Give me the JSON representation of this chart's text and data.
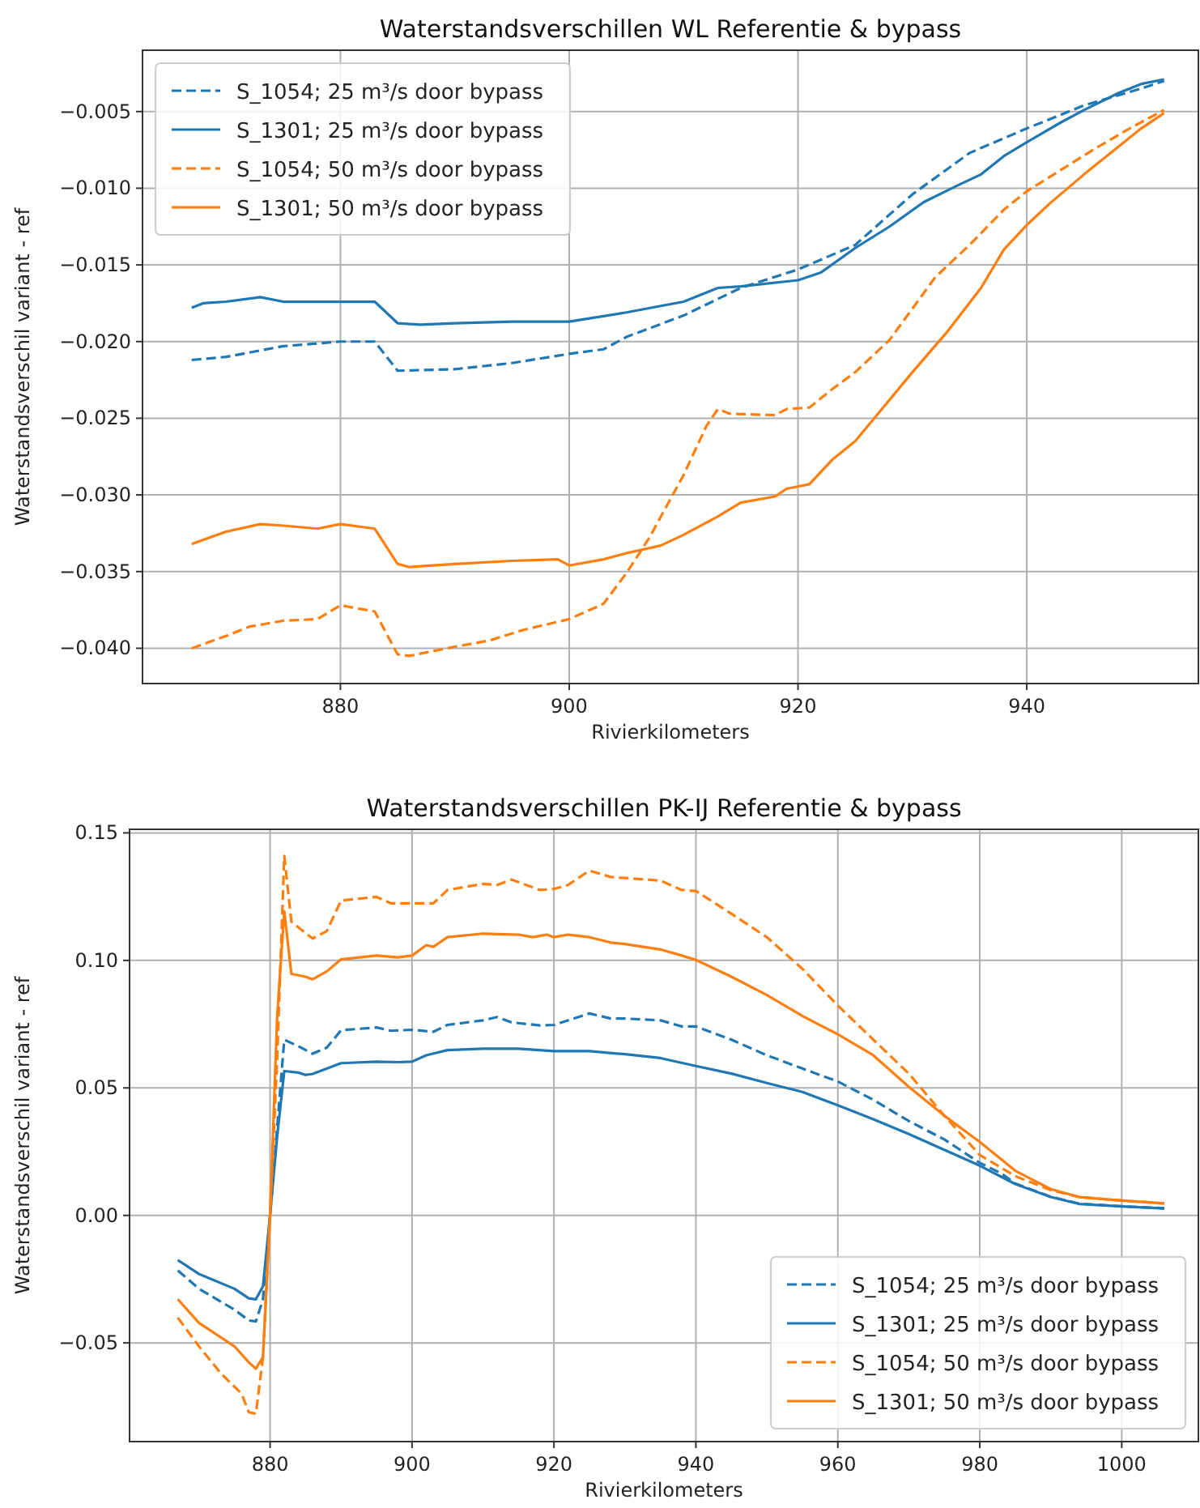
{
  "chart_data": [
    {
      "type": "line",
      "title": "Waterstandsverschillen WL Referentie & bypass",
      "xlabel": "Rivierkilometers",
      "ylabel": "Waterstandsverschil variant - ref",
      "xlim": [
        862.7,
        955
      ],
      "xticks": [
        880,
        900,
        920,
        940
      ],
      "ylim": [
        -0.0423,
        -0.001
      ],
      "yticks": [
        {
          "value": -0.005,
          "label": "−0.005"
        },
        {
          "value": -0.01,
          "label": "−0.010"
        },
        {
          "value": -0.015,
          "label": "−0.015"
        },
        {
          "value": -0.02,
          "label": "−0.020"
        },
        {
          "value": -0.025,
          "label": "−0.025"
        },
        {
          "value": -0.03,
          "label": "−0.030"
        },
        {
          "value": -0.035,
          "label": "−0.035"
        },
        {
          "value": -0.04,
          "label": "−0.040"
        }
      ],
      "grid": true,
      "legend": "top left",
      "series": [
        {
          "name": "S_1054; 25 m³/s door bypass",
          "color": "#1f77b4",
          "line_style": "dashed",
          "x": [
            867,
            870,
            875,
            880,
            883,
            885,
            890,
            895,
            900,
            903,
            905,
            910,
            915,
            920,
            925,
            930,
            935,
            940,
            945,
            950,
            952
          ],
          "values": [
            -0.0212,
            -0.021,
            -0.0203,
            -0.02,
            -0.02,
            -0.0219,
            -0.0218,
            -0.0214,
            -0.0208,
            -0.0205,
            -0.0197,
            -0.0183,
            -0.0165,
            -0.0153,
            -0.0137,
            -0.0104,
            -0.0077,
            -0.0061,
            -0.0046,
            -0.0035,
            -0.003
          ]
        },
        {
          "name": "S_1301; 25 m³/s door bypass",
          "color": "#1f77b4",
          "line_style": "solid",
          "x": [
            867,
            868,
            870,
            873,
            875,
            880,
            883,
            885,
            887,
            890,
            895,
            900,
            905,
            910,
            913,
            915,
            920,
            922,
            925,
            928,
            931,
            934,
            936,
            938,
            940,
            943,
            945,
            948,
            950,
            952
          ],
          "values": [
            -0.0178,
            -0.0175,
            -0.0174,
            -0.0171,
            -0.0174,
            -0.0174,
            -0.0174,
            -0.0188,
            -0.0189,
            -0.0188,
            -0.0187,
            -0.0187,
            -0.0181,
            -0.0174,
            -0.0165,
            -0.0164,
            -0.016,
            -0.0155,
            -0.0139,
            -0.0125,
            -0.0109,
            -0.0098,
            -0.0091,
            -0.0079,
            -0.007,
            -0.0057,
            -0.0049,
            -0.0038,
            -0.0032,
            -0.0029
          ]
        },
        {
          "name": "S_1054; 50 m³/s door bypass",
          "color": "#ff7f0e",
          "line_style": "dashed",
          "x": [
            867,
            870,
            872,
            875,
            878,
            880,
            883,
            885,
            886,
            890,
            893,
            896,
            900,
            903,
            905,
            907,
            910,
            912,
            913,
            914,
            918,
            919,
            921,
            923,
            925,
            928,
            932,
            935,
            938,
            940,
            943,
            946,
            949,
            952
          ],
          "values": [
            -0.04,
            -0.0392,
            -0.0386,
            -0.0382,
            -0.0381,
            -0.0372,
            -0.0376,
            -0.0404,
            -0.0405,
            -0.0399,
            -0.0395,
            -0.0388,
            -0.0381,
            -0.0371,
            -0.0351,
            -0.0328,
            -0.0287,
            -0.0255,
            -0.0244,
            -0.0247,
            -0.0248,
            -0.0244,
            -0.0243,
            -0.0231,
            -0.022,
            -0.0199,
            -0.0158,
            -0.0137,
            -0.0114,
            -0.0102,
            -0.0088,
            -0.0074,
            -0.0061,
            -0.0049
          ]
        },
        {
          "name": "S_1301; 50 m³/s door bypass",
          "color": "#ff7f0e",
          "line_style": "solid",
          "x": [
            867,
            870,
            873,
            875,
            878,
            880,
            883,
            885,
            886,
            890,
            895,
            899,
            900,
            903,
            905,
            908,
            910,
            913,
            915,
            918,
            919,
            921,
            923,
            925,
            927,
            930,
            933,
            936,
            938,
            940,
            942,
            945,
            948,
            950,
            952
          ],
          "values": [
            -0.0332,
            -0.0324,
            -0.0319,
            -0.032,
            -0.0322,
            -0.0319,
            -0.0322,
            -0.0345,
            -0.0347,
            -0.0345,
            -0.0343,
            -0.0342,
            -0.0346,
            -0.0342,
            -0.0338,
            -0.0333,
            -0.0326,
            -0.0314,
            -0.0305,
            -0.0301,
            -0.0296,
            -0.0293,
            -0.0277,
            -0.0265,
            -0.0247,
            -0.022,
            -0.0194,
            -0.0165,
            -0.014,
            -0.0124,
            -0.011,
            -0.0091,
            -0.0073,
            -0.0061,
            -0.0051
          ]
        }
      ]
    },
    {
      "type": "line",
      "title": "Waterstandsverschillen PK-IJ Referentie & bypass",
      "xlabel": "Rivierkilometers",
      "ylabel": "Waterstandsverschil variant - ref",
      "xlim": [
        860.2,
        1010.8
      ],
      "xticks": [
        880,
        900,
        920,
        940,
        960,
        980,
        1000
      ],
      "ylim": [
        -0.0887,
        0.1514
      ],
      "yticks": [
        {
          "value": 0.15,
          "label": "0.15"
        },
        {
          "value": 0.1,
          "label": "0.10"
        },
        {
          "value": 0.05,
          "label": "0.05"
        },
        {
          "value": 0,
          "label": "0.00"
        },
        {
          "value": -0.05,
          "label": "−0.05"
        }
      ],
      "grid": true,
      "legend": "bottom right",
      "series": [
        {
          "name": "S_1054; 25 m³/s door bypass",
          "color": "#1f77b4",
          "line_style": "dashed",
          "x": [
            867,
            870,
            875,
            877,
            878,
            879,
            880,
            882,
            884,
            886,
            888,
            890,
            895,
            897,
            900,
            903,
            905,
            910,
            912,
            914,
            918,
            920,
            925,
            928,
            930,
            935,
            938,
            940,
            945,
            950,
            955,
            960,
            965,
            970,
            975,
            980,
            983,
            985,
            990,
            994,
            1000,
            1006
          ],
          "values": [
            -0.0216,
            -0.0288,
            -0.037,
            -0.0412,
            -0.0416,
            -0.0329,
            0,
            0.0689,
            0.0663,
            0.0634,
            0.0658,
            0.0726,
            0.0737,
            0.0724,
            0.0728,
            0.072,
            0.0747,
            0.0765,
            0.0778,
            0.0757,
            0.0745,
            0.0747,
            0.0792,
            0.0772,
            0.0772,
            0.0765,
            0.0741,
            0.0741,
            0.0689,
            0.0628,
            0.0576,
            0.0525,
            0.0453,
            0.037,
            0.0298,
            0.0206,
            0.0165,
            0.0125,
            0.0073,
            0.0046,
            0.0036,
            0.0028
          ]
        },
        {
          "name": "S_1301; 25 m³/s door bypass",
          "color": "#1f77b4",
          "line_style": "solid",
          "x": [
            867,
            870,
            875,
            877,
            878,
            879,
            880,
            881,
            882,
            884,
            885,
            886,
            890,
            895,
            898,
            900,
            902,
            905,
            910,
            915,
            920,
            925,
            930,
            935,
            940,
            945,
            950,
            955,
            960,
            965,
            970,
            975,
            980,
            985,
            990,
            994,
            1000,
            1006
          ],
          "values": [
            -0.0175,
            -0.023,
            -0.0288,
            -0.0325,
            -0.0329,
            -0.0278,
            0,
            0.031,
            0.0566,
            0.056,
            0.0551,
            0.0555,
            0.0597,
            0.0603,
            0.0601,
            0.0603,
            0.0628,
            0.0648,
            0.0654,
            0.0654,
            0.0644,
            0.0644,
            0.0632,
            0.0617,
            0.0586,
            0.0556,
            0.0519,
            0.0484,
            0.0432,
            0.0377,
            0.0319,
            0.0257,
            0.0195,
            0.0123,
            0.0072,
            0.0045,
            0.0035,
            0.0027
          ]
        },
        {
          "name": "S_1054; 50 m³/s door bypass",
          "color": "#ff7f0e",
          "line_style": "dashed",
          "x": [
            867,
            870,
            873,
            876,
            877,
            878,
            879,
            880,
            881,
            882,
            883,
            885,
            886,
            888,
            890,
            895,
            897,
            900,
            903,
            905,
            910,
            912,
            914,
            918,
            920,
            922,
            925,
            928,
            930,
            935,
            938,
            940,
            945,
            950,
            955,
            960,
            965,
            970,
            975,
            980,
            985,
            990,
            994,
            1000,
            1006
          ],
          "values": [
            -0.0401,
            -0.0514,
            -0.0617,
            -0.07,
            -0.0772,
            -0.0778,
            -0.0556,
            0,
            0.0617,
            0.141,
            0.1152,
            0.1107,
            0.1086,
            0.1115,
            0.1235,
            0.1249,
            0.1224,
            0.1224,
            0.1224,
            0.1276,
            0.13,
            0.1296,
            0.1317,
            0.1276,
            0.128,
            0.1296,
            0.1352,
            0.1327,
            0.1323,
            0.1313,
            0.1276,
            0.1272,
            0.1183,
            0.1091,
            0.0967,
            0.0823,
            0.0689,
            0.0556,
            0.0391,
            0.0237,
            0.0154,
            0.0099,
            0.0072,
            0.0058,
            0.0047
          ]
        },
        {
          "name": "S_1301; 50 m³/s door bypass",
          "color": "#ff7f0e",
          "line_style": "solid",
          "x": [
            867,
            870,
            875,
            877,
            878,
            879,
            880,
            881,
            882,
            883,
            885,
            886,
            888,
            890,
            895,
            898,
            900,
            902,
            903,
            905,
            910,
            915,
            917,
            919,
            920,
            922,
            925,
            928,
            930,
            935,
            938,
            940,
            945,
            950,
            955,
            960,
            965,
            970,
            975,
            980,
            985,
            990,
            994,
            1000,
            1006
          ],
          "values": [
            -0.0329,
            -0.0422,
            -0.0514,
            -0.0576,
            -0.0601,
            -0.0556,
            0,
            0.0782,
            0.1193,
            0.0947,
            0.0936,
            0.0926,
            0.0957,
            0.1004,
            0.1019,
            0.1012,
            0.1019,
            0.106,
            0.1053,
            0.1091,
            0.1105,
            0.1101,
            0.1091,
            0.1101,
            0.1091,
            0.1101,
            0.1091,
            0.107,
            0.1064,
            0.1043,
            0.1019,
            0.1002,
            0.0936,
            0.0864,
            0.0782,
            0.071,
            0.0628,
            0.0504,
            0.0391,
            0.0288,
            0.0175,
            0.0103,
            0.0072,
            0.0058,
            0.0047
          ]
        }
      ]
    }
  ]
}
